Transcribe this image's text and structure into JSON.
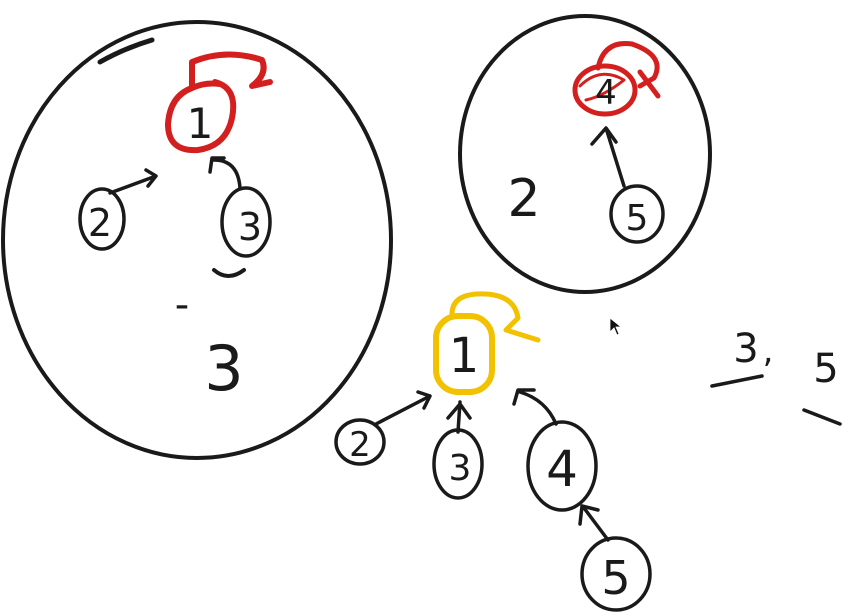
{
  "colors": {
    "ink": "#1a1a1a",
    "root_red": "#d41f1f",
    "root_yellow": "#f2c200",
    "background": "#ffffff",
    "cursor": "#111111"
  },
  "set_a": {
    "root": "1",
    "children": [
      "2",
      "3"
    ],
    "size_mark": "-",
    "size": "3"
  },
  "set_b": {
    "root": "4",
    "child": "5",
    "size": "2"
  },
  "merged": {
    "root": "1",
    "children": [
      "2",
      "3",
      "4"
    ],
    "grandchild": "5"
  },
  "notes": [
    {
      "value": "3",
      "sep": ","
    },
    {
      "value": "5",
      "sep": ""
    }
  ]
}
